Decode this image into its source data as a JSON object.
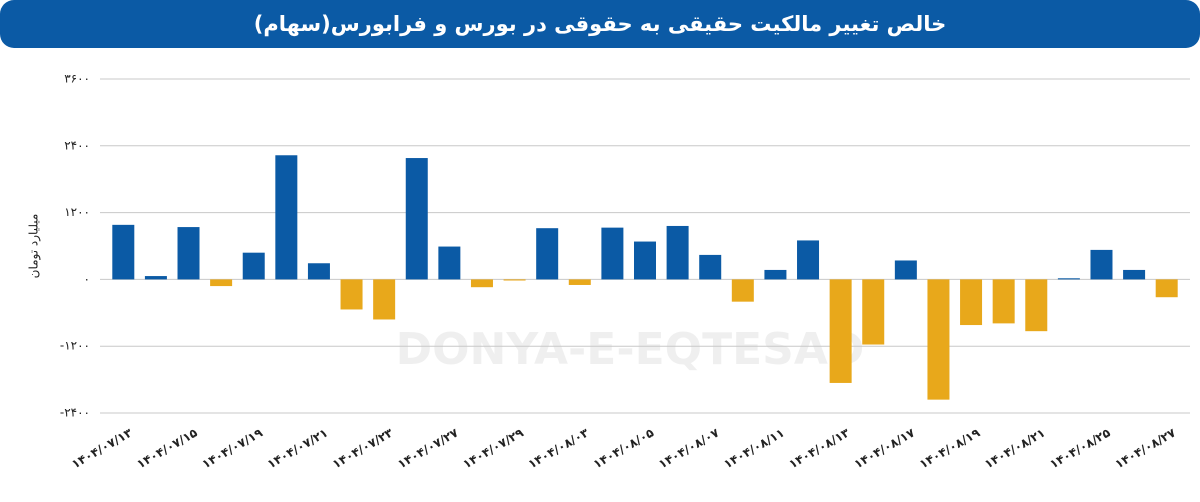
{
  "chart_data": {
    "type": "bar",
    "title": "خالص تغییر مالکیت حقیقی به حقوقی در بورس و فرابورس(سهام)",
    "y_label": "میلیارد تومان",
    "watermark": "DONYA-E-EQTESAD",
    "categories": [
      "۱۴۰۴/۰۷/۱۳",
      null,
      "۱۴۰۴/۰۷/۱۵",
      null,
      "۱۴۰۴/۰۷/۱۹",
      null,
      "۱۴۰۴/۰۷/۲۱",
      null,
      "۱۴۰۴/۰۷/۲۳",
      null,
      "۱۴۰۴/۰۷/۲۷",
      null,
      "۱۴۰۴/۰۷/۲۹",
      null,
      "۱۴۰۴/۰۸/۰۳",
      null,
      "۱۴۰۴/۰۸/۰۵",
      null,
      "۱۴۰۴/۰۸/۰۷",
      null,
      "۱۴۰۴/۰۸/۱۱",
      null,
      "۱۴۰۴/۰۸/۱۳",
      null,
      "۱۴۰۴/۰۸/۱۷",
      null,
      "۱۴۰۴/۰۸/۱۹",
      null,
      "۱۴۰۴/۰۸/۲۱",
      null,
      "۱۴۰۴/۰۸/۲۵",
      null,
      "۱۴۰۴/۰۸/۲۷"
    ],
    "values": [
      980,
      60,
      940,
      -120,
      480,
      2230,
      290,
      -540,
      -720,
      2180,
      590,
      -140,
      -20,
      920,
      -100,
      930,
      680,
      960,
      440,
      -400,
      170,
      700,
      -1860,
      -1170,
      340,
      -2160,
      -820,
      -790,
      -930,
      20,
      530,
      170,
      -320
    ],
    "color_positive": "#0b5aa5",
    "color_negative": "#e8a81b",
    "ylim": [
      -2400,
      3600
    ],
    "yticks": [
      {
        "value": -2400,
        "label": "-۲۴۰۰"
      },
      {
        "value": -1200,
        "label": "-۱۲۰۰"
      },
      {
        "value": 0,
        "label": "۰"
      },
      {
        "value": 1200,
        "label": "۱۲۰۰"
      },
      {
        "value": 2400,
        "label": "۲۴۰۰"
      },
      {
        "value": 3600,
        "label": "۳۶۰۰"
      }
    ],
    "grid": true
  }
}
